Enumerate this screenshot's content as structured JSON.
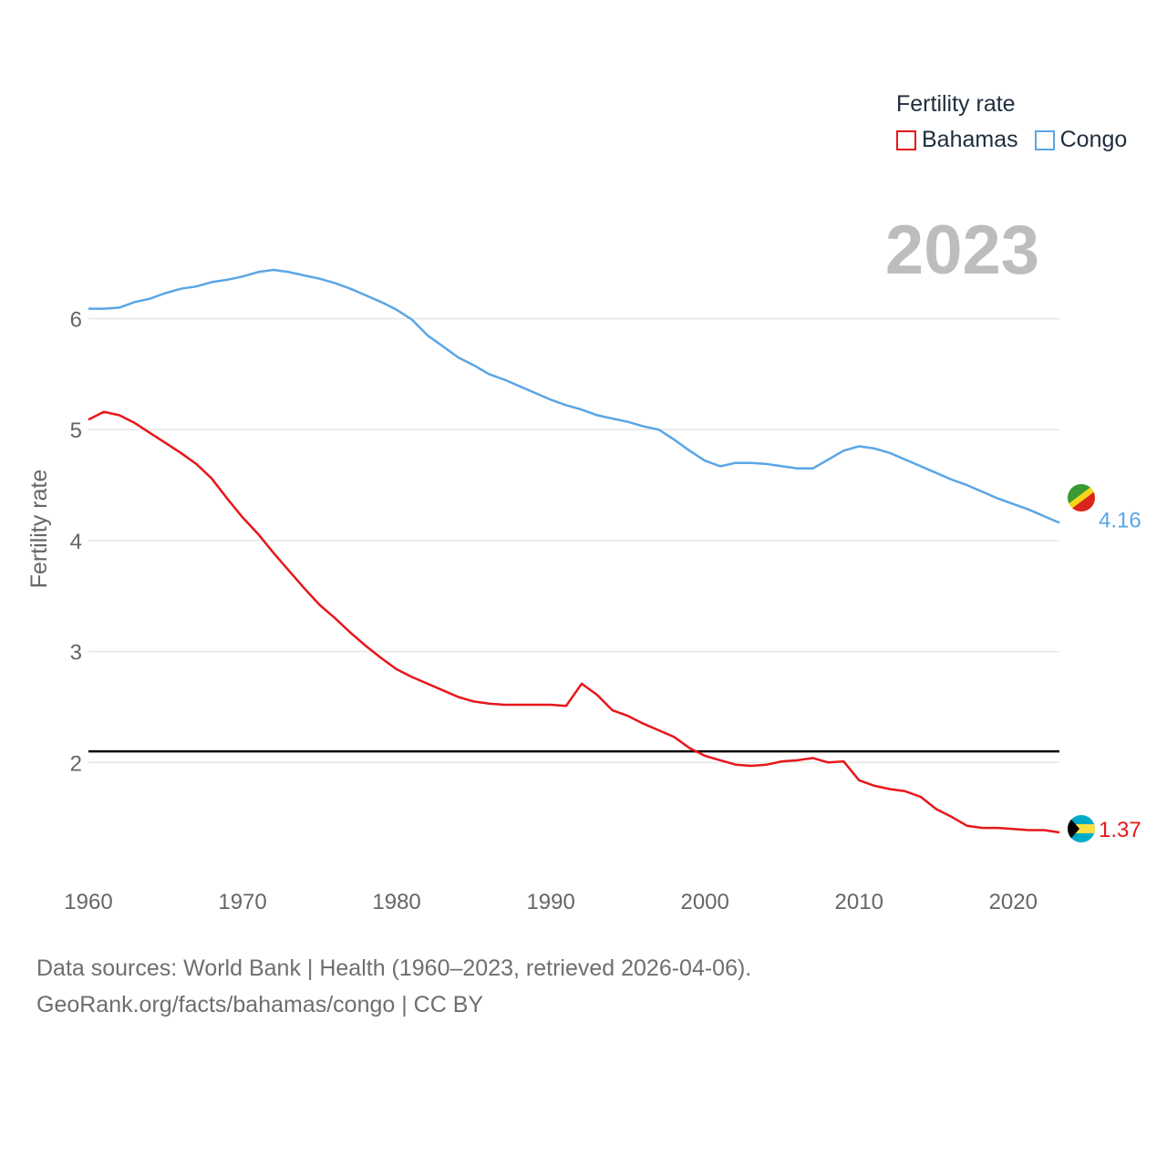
{
  "legend": {
    "title": "Fertility rate",
    "series": [
      {
        "name": "Bahamas",
        "color": "#e8161b"
      },
      {
        "name": "Congo",
        "color": "#5aa6e6"
      }
    ]
  },
  "year_label": "2023",
  "source": {
    "line1": "Data sources: World Bank | Health (1960–2023, retrieved 2026-04-06).",
    "line2": "GeoRank.org/facts/bahamas/congo | CC BY"
  },
  "chart_data": {
    "type": "line",
    "title": "Fertility rate",
    "xlabel": "",
    "ylabel": "Fertility rate",
    "xlim": [
      1960,
      2023
    ],
    "ylim": [
      1.0,
      6.9
    ],
    "x_ticks": [
      1960,
      1970,
      1980,
      1990,
      2000,
      2010,
      2020
    ],
    "y_ticks": [
      2,
      3,
      4,
      5,
      6
    ],
    "grid": true,
    "reference_line": {
      "y": 2.1,
      "color": "#000000"
    },
    "x": [
      1960,
      1961,
      1962,
      1963,
      1964,
      1965,
      1966,
      1967,
      1968,
      1969,
      1970,
      1971,
      1972,
      1973,
      1974,
      1975,
      1976,
      1977,
      1978,
      1979,
      1980,
      1981,
      1982,
      1983,
      1984,
      1985,
      1986,
      1987,
      1988,
      1989,
      1990,
      1991,
      1992,
      1993,
      1994,
      1995,
      1996,
      1997,
      1998,
      1999,
      2000,
      2001,
      2002,
      2003,
      2004,
      2005,
      2006,
      2007,
      2008,
      2009,
      2010,
      2011,
      2012,
      2013,
      2014,
      2015,
      2016,
      2017,
      2018,
      2019,
      2020,
      2021,
      2022,
      2023
    ],
    "series": [
      {
        "name": "Bahamas",
        "color": "#e8161b",
        "end_label": "1.37",
        "values": [
          5.09,
          5.16,
          5.13,
          5.06,
          4.97,
          4.88,
          4.79,
          4.69,
          4.56,
          4.38,
          4.21,
          4.06,
          3.89,
          3.73,
          3.57,
          3.42,
          3.3,
          3.17,
          3.05,
          2.94,
          2.84,
          2.77,
          2.71,
          2.65,
          2.59,
          2.55,
          2.53,
          2.52,
          2.52,
          2.52,
          2.52,
          2.51,
          2.71,
          2.61,
          2.47,
          2.42,
          2.35,
          2.29,
          2.23,
          2.13,
          2.06,
          2.02,
          1.98,
          1.97,
          1.98,
          2.01,
          2.02,
          2.04,
          2.0,
          2.01,
          1.84,
          1.79,
          1.76,
          1.74,
          1.69,
          1.58,
          1.51,
          1.43,
          1.41,
          1.41,
          1.4,
          1.39,
          1.39,
          1.37
        ]
      },
      {
        "name": "Congo",
        "color": "#5aa6e6",
        "end_label": "4.16",
        "values": [
          6.09,
          6.09,
          6.1,
          6.15,
          6.18,
          6.23,
          6.27,
          6.29,
          6.33,
          6.35,
          6.38,
          6.42,
          6.44,
          6.42,
          6.39,
          6.36,
          6.32,
          6.27,
          6.21,
          6.15,
          6.08,
          5.99,
          5.85,
          5.75,
          5.65,
          5.58,
          5.5,
          5.45,
          5.39,
          5.33,
          5.27,
          5.22,
          5.18,
          5.13,
          5.1,
          5.07,
          5.03,
          5.0,
          4.91,
          4.81,
          4.72,
          4.67,
          4.7,
          4.7,
          4.69,
          4.67,
          4.65,
          4.65,
          4.73,
          4.81,
          4.85,
          4.83,
          4.79,
          4.73,
          4.67,
          4.61,
          4.55,
          4.5,
          4.44,
          4.38,
          4.33,
          4.28,
          4.22,
          4.16
        ]
      }
    ]
  }
}
